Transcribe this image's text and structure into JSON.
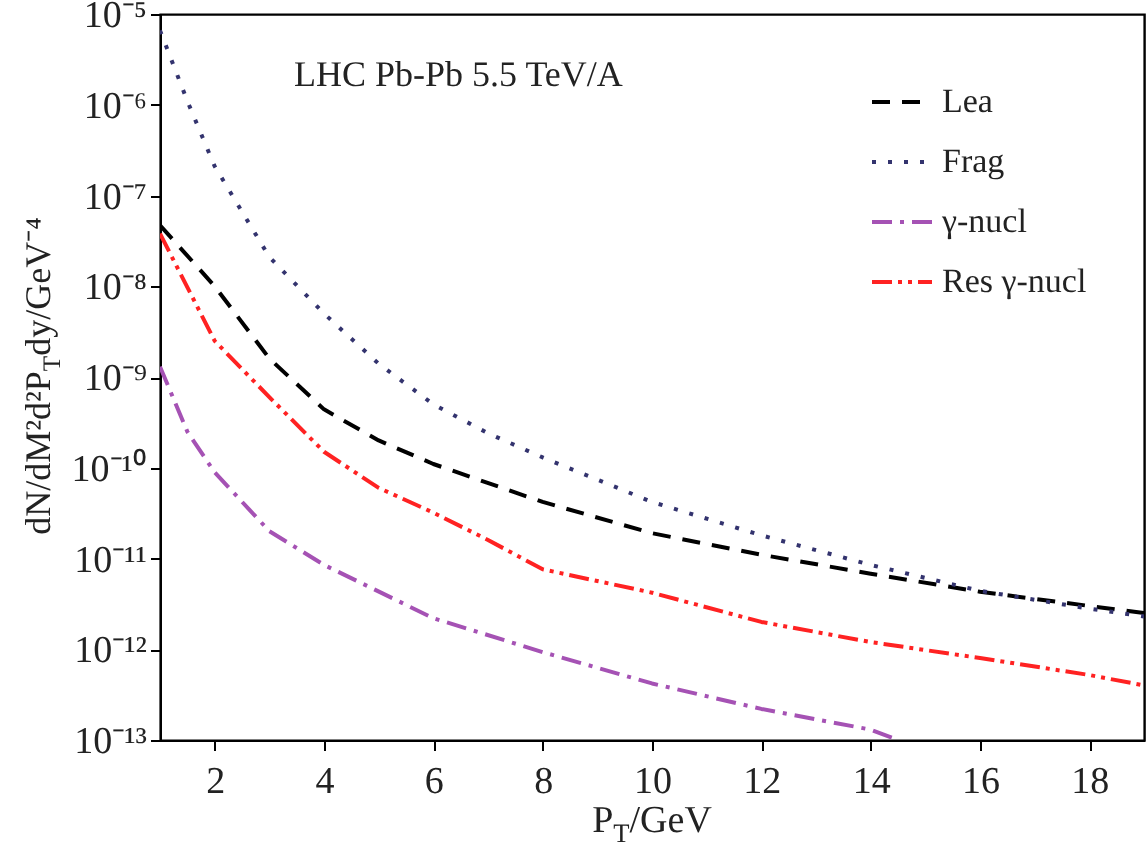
{
  "chart_data": {
    "type": "line",
    "xlabel": "P$_{T}$/GeV",
    "ylabel": "dN/dM²d²P$_{T}$dy/GeV⁻⁴",
    "annotations": [
      "LHC Pb-Pb 5.5 TeV/A"
    ],
    "log": "y",
    "xlim": [
      1,
      19
    ],
    "xticks": [
      2,
      4,
      6,
      8,
      10,
      12,
      14,
      16,
      18
    ],
    "ylim": [
      1e-13,
      1e-05
    ],
    "yticks": [
      {
        "value": 1e-13,
        "label": "10⁻¹³"
      },
      {
        "value": 1e-12,
        "label": "10⁻¹²"
      },
      {
        "value": 1e-11,
        "label": "10⁻¹¹"
      },
      {
        "value": 1e-10,
        "label": "10⁻¹⁰"
      },
      {
        "value": 1e-09,
        "label": "10⁻⁹"
      },
      {
        "value": 1e-08,
        "label": "10⁻⁸"
      },
      {
        "value": 1e-07,
        "label": "10⁻⁷"
      },
      {
        "value": 1e-06,
        "label": "10⁻⁶"
      },
      {
        "value": 1e-05,
        "label": "10⁻⁵"
      }
    ],
    "grid": false,
    "legend": "top right",
    "series": [
      {
        "name": "Lea",
        "color": "#000000",
        "line_style": "dashed",
        "x": [
          1,
          2,
          3,
          4,
          5,
          6,
          8,
          10,
          12,
          14,
          16,
          18,
          19
        ],
        "values": [
          4.7e-08,
          1e-08,
          1.6e-09,
          4.4e-10,
          2e-10,
          1.1e-10,
          4.2e-11,
          1.9e-11,
          1.1e-11,
          6.8e-12,
          4.3e-12,
          3e-12,
          2.5e-12
        ]
      },
      {
        "name": "Frag",
        "color": "#33336e",
        "line_style": "dotted",
        "x": [
          1,
          1.5,
          2,
          3,
          4,
          5,
          6,
          7,
          8,
          10,
          12,
          14,
          16,
          18,
          19
        ],
        "values": [
          6.6e-06,
          1.1e-06,
          2.1e-07,
          2.1e-08,
          5e-09,
          1.4e-09,
          5e-10,
          2.4e-10,
          1.3e-10,
          4.2e-11,
          1.8e-11,
          8.5e-12,
          4.4e-12,
          2.8e-12,
          2.3e-12
        ]
      },
      {
        "name": "γ-nucl",
        "color": "#a552b4",
        "line_style": "dashdot",
        "x": [
          1,
          1.5,
          2,
          3,
          4,
          6,
          8,
          10,
          12,
          14,
          14.5
        ],
        "values": [
          1.3e-09,
          2.5e-10,
          8.9e-11,
          2e-11,
          8.5e-12,
          2.2e-12,
          9.3e-13,
          4.2e-13,
          2.2e-13,
          1.3e-13,
          1e-13
        ]
      },
      {
        "name": "Res γ-nucl",
        "color": "#ff2222",
        "line_style": "dashdotdot",
        "x": [
          1,
          2,
          3,
          4,
          5,
          6,
          7,
          8,
          10,
          12,
          14,
          16,
          18,
          19
        ],
        "values": [
          3.8e-08,
          2.5e-09,
          6e-10,
          1.5e-10,
          6e-11,
          3.2e-11,
          1.6e-11,
          7.6e-12,
          4.2e-12,
          2e-12,
          1.2e-12,
          8e-13,
          5.2e-13,
          4e-13
        ]
      }
    ]
  }
}
